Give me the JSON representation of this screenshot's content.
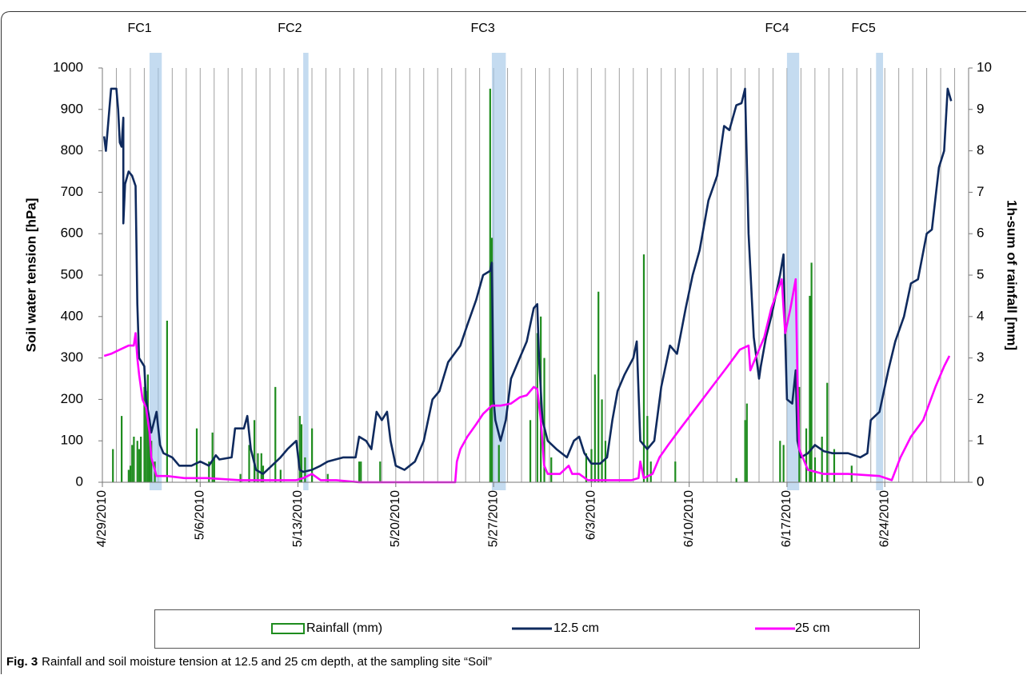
{
  "chart_data": {
    "type": "line",
    "ylabel": "Soil water tension [hPa]",
    "y2label": "1h-sum of rainfall [mm]",
    "xlim": [
      "2010-04-29",
      "2010-06-30"
    ],
    "xticks": [
      {
        "value": "2010-04-29",
        "label": "4/29/2010"
      },
      {
        "value": "2010-05-06",
        "label": "5/6/2010"
      },
      {
        "value": "2010-05-13",
        "label": "5/13/2010"
      },
      {
        "value": "2010-05-20",
        "label": "5/20/2010"
      },
      {
        "value": "2010-05-27",
        "label": "5/27/2010"
      },
      {
        "value": "2010-06-03",
        "label": "6/3/2010"
      },
      {
        "value": "2010-06-10",
        "label": "6/10/2010"
      },
      {
        "value": "2010-06-17",
        "label": "6/17/2010"
      },
      {
        "value": "2010-06-24",
        "label": "6/24/2010"
      }
    ],
    "minor_grid": "daily",
    "ylim": [
      0,
      1000
    ],
    "yticks": [
      0,
      100,
      200,
      300,
      400,
      500,
      600,
      700,
      800,
      900,
      1000
    ],
    "y2lim": [
      0,
      10
    ],
    "y2ticks": [
      0,
      1,
      2,
      3,
      4,
      5,
      6,
      7,
      8,
      9,
      10
    ],
    "events": [
      {
        "label": "FC1",
        "start": "2010-05-02T09:00",
        "end": "2010-05-03T06:00"
      },
      {
        "label": "FC2",
        "start": "2010-05-13T09:00",
        "end": "2010-05-13T18:00"
      },
      {
        "label": "FC3",
        "start": "2010-05-26T21:00",
        "end": "2010-05-27T21:00"
      },
      {
        "label": "FC4",
        "start": "2010-06-17T00:00",
        "end": "2010-06-17T21:00"
      },
      {
        "label": "FC5",
        "start": "2010-06-23T09:00",
        "end": "2010-06-23T21:00"
      }
    ],
    "series": [
      {
        "name": "Rainfall (mm)",
        "type": "bar",
        "axis": "y2",
        "color": "#1e8c1e",
        "x": [
          "2010-04-29T18:00",
          "2010-04-30T09:00",
          "2010-04-30T21:00",
          "2010-05-01T00:00",
          "2010-05-01T03:00",
          "2010-05-01T06:00",
          "2010-05-01T12:00",
          "2010-05-01T15:00",
          "2010-05-01T18:00",
          "2010-05-02T00:00",
          "2010-05-02T03:00",
          "2010-05-02T06:00",
          "2010-05-02T09:00",
          "2010-05-02T12:00",
          "2010-05-02T18:00",
          "2010-05-03T15:00",
          "2010-05-05T18:00",
          "2010-05-06T15:00",
          "2010-05-06T21:00",
          "2010-05-07T00:00",
          "2010-05-08T21:00",
          "2010-05-09T12:00",
          "2010-05-09T21:00",
          "2010-05-10T03:00",
          "2010-05-10T09:00",
          "2010-05-10T12:00",
          "2010-05-11T09:00",
          "2010-05-11T18:00",
          "2010-05-13T03:00",
          "2010-05-13T06:00",
          "2010-05-13T12:00",
          "2010-05-14T00:00",
          "2010-05-15T03:00",
          "2010-05-17T09:00",
          "2010-05-17T12:00",
          "2010-05-18T21:00",
          "2010-05-26T18:00",
          "2010-05-26T21:00",
          "2010-05-27T09:00",
          "2010-05-29T15:00",
          "2010-05-30T03:00",
          "2010-05-30T09:00",
          "2010-05-30T15:00",
          "2010-05-31T03:00",
          "2010-06-02T15:00",
          "2010-06-03T00:00",
          "2010-06-03T06:00",
          "2010-06-03T12:00",
          "2010-06-03T18:00",
          "2010-06-04T00:00",
          "2010-06-06T18:00",
          "2010-06-07T00:00",
          "2010-06-07T06:00",
          "2010-06-09T00:00",
          "2010-06-13T09:00",
          "2010-06-14T00:00",
          "2010-06-14T03:00",
          "2010-06-16T12:00",
          "2010-06-16T18:00",
          "2010-06-17T21:00",
          "2010-06-18T09:00",
          "2010-06-18T15:00",
          "2010-06-18T18:00",
          "2010-06-19T00:00",
          "2010-06-19T12:00",
          "2010-06-19T21:00",
          "2010-06-20T09:00",
          "2010-06-21T15:00"
        ],
        "values": [
          0.8,
          1.6,
          0.3,
          0.4,
          0.9,
          1.1,
          1.0,
          0.8,
          1.1,
          2.3,
          2.2,
          2.6,
          1.5,
          1.0,
          0.5,
          3.9,
          1.3,
          0.5,
          1.2,
          0.6,
          0.2,
          0.9,
          1.5,
          0.7,
          0.7,
          0.4,
          2.3,
          0.3,
          1.6,
          1.4,
          0.6,
          1.3,
          0.2,
          0.5,
          0.5,
          0.5,
          9.5,
          5.9,
          0.9,
          1.5,
          3.6,
          4.0,
          3.0,
          0.6,
          0.7,
          0.8,
          2.6,
          4.6,
          2.0,
          1.0,
          5.5,
          1.6,
          0.5,
          0.5,
          0.1,
          1.5,
          1.9,
          1.0,
          0.9,
          2.3,
          1.3,
          4.5,
          5.3,
          0.6,
          1.1,
          2.4,
          0.8,
          0.4
        ]
      },
      {
        "name": "12.5 cm",
        "color": "#0f2a5e",
        "x": [
          "2010-04-29T03:00",
          "2010-04-29T06:00",
          "2010-04-29T12:00",
          "2010-04-29T15:00",
          "2010-04-30T00:00",
          "2010-04-30T03:00",
          "2010-04-30T06:00",
          "2010-04-30T09:00",
          "2010-04-30T12:00",
          "2010-04-30T12:00",
          "2010-04-30T15:00",
          "2010-04-30T21:00",
          "2010-05-01T03:00",
          "2010-05-01T09:00",
          "2010-05-01T12:00",
          "2010-05-01T15:00",
          "2010-05-02T00:00",
          "2010-05-02T03:00",
          "2010-05-02T09:00",
          "2010-05-02T12:00",
          "2010-05-02T21:00",
          "2010-05-03T03:00",
          "2010-05-03T09:00",
          "2010-05-04T00:00",
          "2010-05-04T12:00",
          "2010-05-05T09:00",
          "2010-05-06T00:00",
          "2010-05-06T15:00",
          "2010-05-07T03:00",
          "2010-05-07T09:00",
          "2010-05-08T06:00",
          "2010-05-08T12:00",
          "2010-05-09T03:00",
          "2010-05-09T09:00",
          "2010-05-09T15:00",
          "2010-05-10T00:00",
          "2010-05-10T12:00",
          "2010-05-11T03:00",
          "2010-05-11T18:00",
          "2010-05-12T06:00",
          "2010-05-12T21:00",
          "2010-05-13T03:00",
          "2010-05-13T09:00",
          "2010-05-14T00:00",
          "2010-05-14T15:00",
          "2010-05-15T03:00",
          "2010-05-16T06:00",
          "2010-05-17T03:00",
          "2010-05-17T09:00",
          "2010-05-17T21:00",
          "2010-05-18T06:00",
          "2010-05-18T15:00",
          "2010-05-19T00:00",
          "2010-05-19T09:00",
          "2010-05-19T15:00",
          "2010-05-20T00:00",
          "2010-05-20T15:00",
          "2010-05-21T09:00",
          "2010-05-22T00:00",
          "2010-05-22T15:00",
          "2010-05-23T03:00",
          "2010-05-23T18:00",
          "2010-05-24T15:00",
          "2010-05-25T03:00",
          "2010-05-25T18:00",
          "2010-05-26T06:00",
          "2010-05-26T18:00",
          "2010-05-26T21:00",
          "2010-05-27T00:00",
          "2010-05-27T03:00",
          "2010-05-27T12:00",
          "2010-05-27T21:00",
          "2010-05-28T06:00",
          "2010-05-28T21:00",
          "2010-05-29T09:00",
          "2010-05-29T21:00",
          "2010-05-30T03:00",
          "2010-05-30T06:00",
          "2010-05-30T12:00",
          "2010-05-30T21:00",
          "2010-05-31T12:00",
          "2010-06-01T06:00",
          "2010-06-01T18:00",
          "2010-06-02T03:00",
          "2010-06-02T12:00",
          "2010-06-03T00:00",
          "2010-06-03T15:00",
          "2010-06-04T03:00",
          "2010-06-04T12:00",
          "2010-06-04T21:00",
          "2010-06-05T09:00",
          "2010-06-06T00:00",
          "2010-06-06T06:00",
          "2010-06-06T12:00",
          "2010-06-07T00:00",
          "2010-06-07T12:00",
          "2010-06-08T00:00",
          "2010-06-08T15:00",
          "2010-06-09T03:00",
          "2010-06-09T18:00",
          "2010-06-10T06:00",
          "2010-06-10T18:00",
          "2010-06-11T09:00",
          "2010-06-12T00:00",
          "2010-06-12T12:00",
          "2010-06-12T21:00",
          "2010-06-13T09:00",
          "2010-06-13T18:00",
          "2010-06-14T00:00",
          "2010-06-14T06:00",
          "2010-06-14T15:00",
          "2010-06-15T00:00",
          "2010-06-15T03:00",
          "2010-06-15T12:00",
          "2010-06-15T21:00",
          "2010-06-16T12:00",
          "2010-06-16T18:00",
          "2010-06-16T21:00",
          "2010-06-17T00:00",
          "2010-06-17T09:00",
          "2010-06-17T15:00",
          "2010-06-17T18:00",
          "2010-06-18T00:00",
          "2010-06-18T12:00",
          "2010-06-19T00:00",
          "2010-06-19T15:00",
          "2010-06-20T06:00",
          "2010-06-21T09:00",
          "2010-06-22T06:00",
          "2010-06-22T18:00",
          "2010-06-23T00:00",
          "2010-06-23T15:00",
          "2010-06-24T06:00",
          "2010-06-24T18:00",
          "2010-06-25T09:00",
          "2010-06-25T21:00",
          "2010-06-26T09:00",
          "2010-06-27T00:00",
          "2010-06-27T09:00",
          "2010-06-27T21:00",
          "2010-06-28T06:00",
          "2010-06-28T12:00",
          "2010-06-28T18:00"
        ],
        "values": [
          835,
          800,
          900,
          950,
          950,
          900,
          820,
          810,
          880,
          625,
          720,
          750,
          740,
          715,
          430,
          300,
          280,
          200,
          150,
          120,
          170,
          90,
          70,
          60,
          40,
          40,
          50,
          40,
          65,
          55,
          60,
          130,
          130,
          160,
          80,
          30,
          20,
          40,
          60,
          80,
          100,
          30,
          25,
          30,
          40,
          50,
          60,
          60,
          110,
          100,
          80,
          170,
          150,
          170,
          100,
          40,
          30,
          50,
          100,
          200,
          220,
          290,
          330,
          380,
          440,
          500,
          510,
          530,
          200,
          150,
          100,
          150,
          250,
          300,
          340,
          420,
          430,
          300,
          150,
          100,
          80,
          60,
          100,
          110,
          70,
          45,
          45,
          60,
          150,
          220,
          260,
          300,
          340,
          100,
          80,
          100,
          230,
          330,
          310,
          420,
          500,
          560,
          680,
          740,
          860,
          850,
          910,
          915,
          950,
          600,
          350,
          250,
          280,
          350,
          400,
          500,
          550,
          350,
          200,
          190,
          270,
          100,
          60,
          70,
          90,
          75,
          70,
          70,
          60,
          70,
          150,
          170,
          270,
          340,
          400,
          480,
          490,
          600,
          610,
          760,
          800,
          950,
          920
        ]
      },
      {
        "name": "25 cm",
        "color": "#ff00ff",
        "x": [
          "2010-04-29T03:00",
          "2010-04-29T15:00",
          "2010-04-30T06:00",
          "2010-04-30T21:00",
          "2010-05-01T06:00",
          "2010-05-01T09:00",
          "2010-05-01T12:00",
          "2010-05-01T15:00",
          "2010-05-01T21:00",
          "2010-05-02T03:00",
          "2010-05-02T09:00",
          "2010-05-02T12:00",
          "2010-05-02T21:00",
          "2010-05-03T15:00",
          "2010-05-04T21:00",
          "2010-05-06T12:00",
          "2010-05-08T21:00",
          "2010-05-11T03:00",
          "2010-05-12T21:00",
          "2010-05-13T09:00",
          "2010-05-14T00:00",
          "2010-05-14T15:00",
          "2010-05-15T18:00",
          "2010-05-17T09:00",
          "2010-05-24T06:00",
          "2010-05-24T09:00",
          "2010-05-24T15:00",
          "2010-05-25T03:00",
          "2010-05-25T18:00",
          "2010-05-26T06:00",
          "2010-05-26T21:00",
          "2010-05-27T12:00",
          "2010-05-28T06:00",
          "2010-05-28T21:00",
          "2010-05-29T09:00",
          "2010-05-29T21:00",
          "2010-05-30T03:00",
          "2010-05-30T09:00",
          "2010-05-30T15:00",
          "2010-05-30T21:00",
          "2010-05-31T18:00",
          "2010-06-01T09:00",
          "2010-06-01T15:00",
          "2010-06-02T03:00",
          "2010-06-02T18:00",
          "2010-06-03T15:00",
          "2010-06-05T21:00",
          "2010-06-06T09:00",
          "2010-06-06T12:00",
          "2010-06-06T18:00",
          "2010-06-07T09:00",
          "2010-06-07T21:00",
          "2010-06-08T12:00",
          "2010-06-09T09:00",
          "2010-06-10T12:00",
          "2010-06-11T15:00",
          "2010-06-12T18:00",
          "2010-06-13T15:00",
          "2010-06-14T06:00",
          "2010-06-14T09:00",
          "2010-06-14T18:00",
          "2010-06-15T09:00",
          "2010-06-15T21:00",
          "2010-06-16T15:00",
          "2010-06-16T18:00",
          "2010-06-16T21:00",
          "2010-06-17T06:00",
          "2010-06-17T15:00",
          "2010-06-17T18:00",
          "2010-06-17T21:00",
          "2010-06-18T12:00",
          "2010-06-19T15:00",
          "2010-06-21T09:00",
          "2010-06-23T15:00",
          "2010-06-24T12:00",
          "2010-06-25T03:00",
          "2010-06-25T21:00",
          "2010-06-26T18:00",
          "2010-06-27T15:00",
          "2010-06-28T06:00",
          "2010-06-28T15:00"
        ],
        "values": [
          305,
          310,
          320,
          330,
          330,
          360,
          300,
          260,
          200,
          180,
          120,
          60,
          15,
          15,
          10,
          10,
          5,
          5,
          5,
          10,
          20,
          5,
          5,
          0,
          0,
          50,
          80,
          110,
          140,
          165,
          185,
          185,
          190,
          205,
          210,
          230,
          225,
          150,
          40,
          20,
          20,
          40,
          20,
          20,
          5,
          5,
          5,
          10,
          50,
          10,
          20,
          60,
          90,
          130,
          180,
          230,
          280,
          320,
          330,
          270,
          300,
          350,
          420,
          490,
          420,
          360,
          420,
          490,
          250,
          80,
          30,
          20,
          20,
          15,
          5,
          60,
          110,
          150,
          230,
          280,
          305
        ]
      }
    ],
    "caption_label": "Fig. 3",
    "caption": "Rainfall and soil moisture tension at 12.5 and 25 cm depth, at the sampling site “Soil”"
  }
}
